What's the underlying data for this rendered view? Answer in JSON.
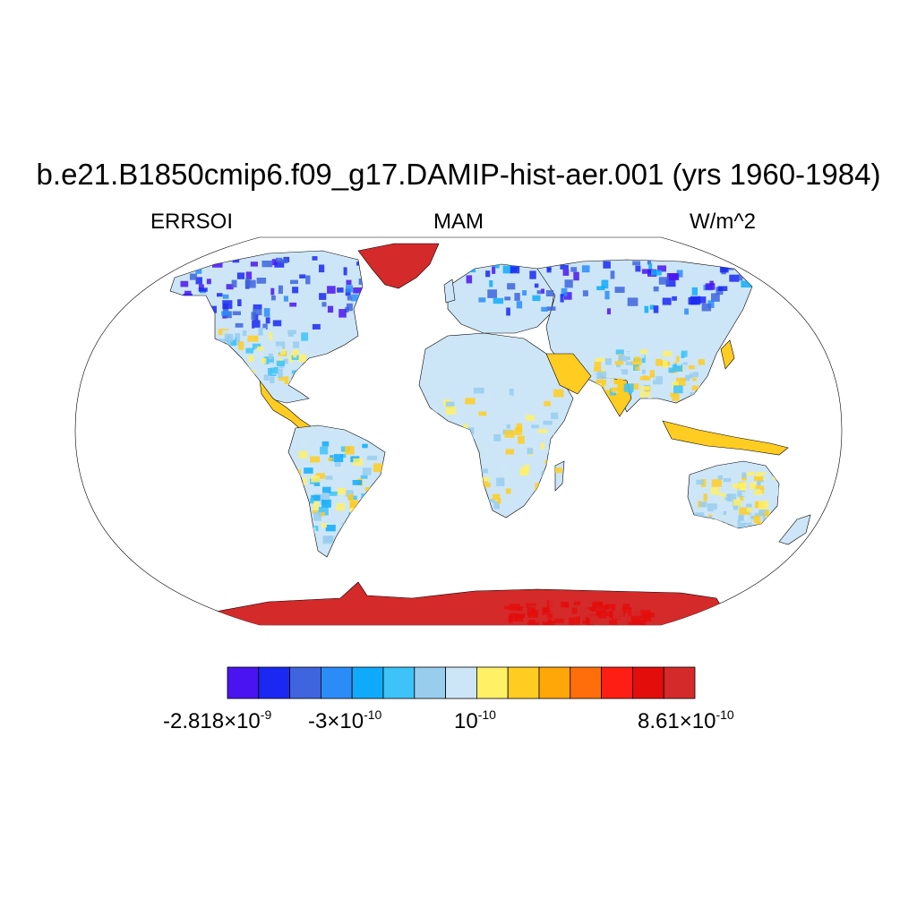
{
  "title": "b.e21.B1850cmip6.f09_g17.DAMIP-hist-aer.001 (yrs 1960-1984)",
  "left_string": "ERRSOI",
  "center_string": "MAM",
  "right_string": "W/m^2",
  "colorbar": {
    "colors": [
      "#4a14f0",
      "#1a28f2",
      "#3e64de",
      "#2b8cf8",
      "#0fabfa",
      "#3ec3f8",
      "#98cdee",
      "#cde6f7",
      "#fff066",
      "#ffcc22",
      "#ffa608",
      "#ff6e0a",
      "#ff1e14",
      "#e30e0c",
      "#d42a2a"
    ],
    "labels": [
      {
        "mantissa": "-2.818",
        "exponent": "-9"
      },
      {
        "mantissa": "-3",
        "exponent": "-10"
      },
      {
        "mantissa": "",
        "exponent": "-10"
      },
      {
        "mantissa": "8.61",
        "exponent": "-10"
      }
    ]
  },
  "map": {
    "projection": "Robinson",
    "ocean_color": "#ffffff",
    "antarctica_color": "#d42a2a",
    "greenland_color": "#d42a2a"
  }
}
